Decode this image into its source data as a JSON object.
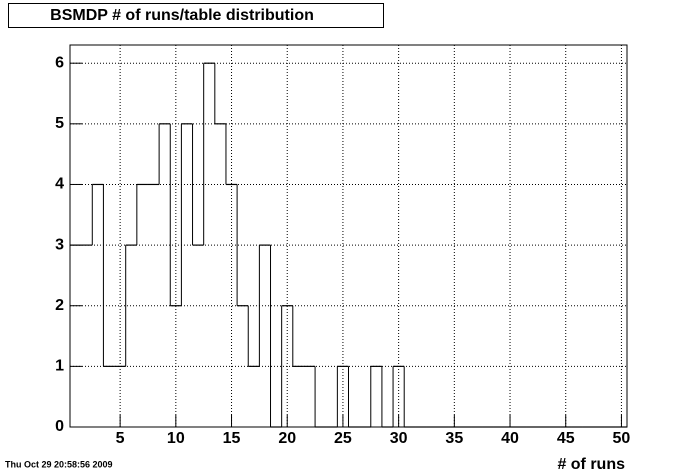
{
  "chart_data": {
    "type": "histogram",
    "title": "BSMDP # of runs/table distribution",
    "x_label": "# of runs",
    "timestamp": "Thu Oct 29 20:58:56 2009",
    "bins": [
      0.5,
      1.5,
      2.5,
      3.5,
      4.5,
      5.5,
      6.5,
      7.5,
      8.5,
      9.5,
      10.5,
      11.5,
      12.5,
      13.5,
      14.5,
      15.5,
      16.5,
      17.5,
      18.5,
      19.5,
      20.5,
      21.5,
      22.5,
      23.5,
      24.5,
      25.5,
      26.5,
      27.5,
      28.5,
      29.5,
      30.5,
      31.5,
      32.5,
      33.5,
      34.5,
      35.5,
      36.5,
      37.5,
      38.5,
      39.5,
      40.5,
      41.5,
      42.5,
      43.5,
      44.5,
      45.5,
      46.5,
      47.5,
      48.5,
      49.5,
      50.5
    ],
    "values": [
      3,
      3,
      4,
      1,
      1,
      3,
      4,
      4,
      5,
      2,
      5,
      3,
      6,
      5,
      4,
      2,
      1,
      3,
      0,
      2,
      1,
      1,
      0,
      0,
      1,
      0,
      0,
      1,
      0,
      1,
      0,
      0,
      0,
      0,
      0,
      0,
      0,
      0,
      0,
      0,
      0,
      0,
      0,
      0,
      0,
      0,
      0,
      0,
      0,
      0
    ],
    "color": "#000000",
    "xlim": [
      0.5,
      50.5
    ],
    "xticks": [
      5,
      10,
      15,
      20,
      25,
      30,
      35,
      40,
      45,
      50
    ],
    "ylim": [
      0,
      6.3
    ],
    "yticks": [
      0,
      1,
      2,
      3,
      4,
      5,
      6
    ],
    "grid": true
  }
}
